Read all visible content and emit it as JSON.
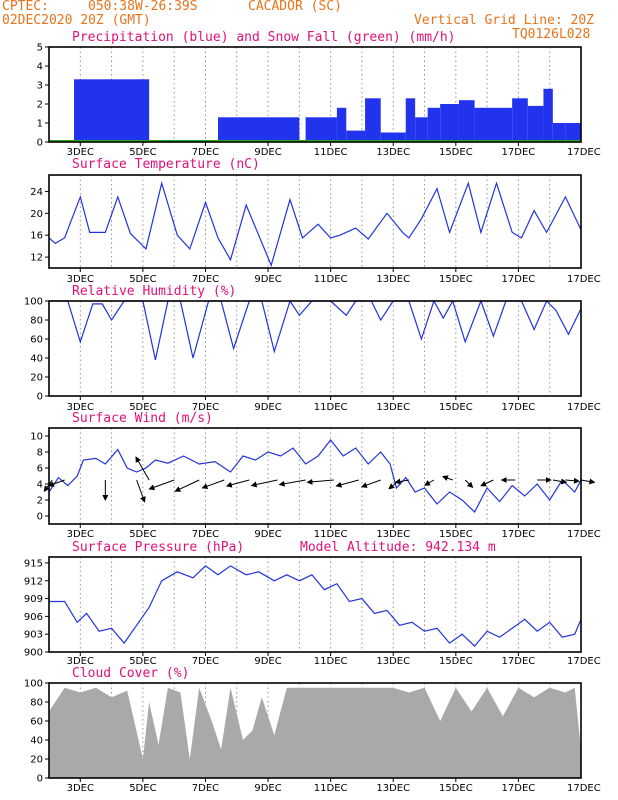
{
  "header": {
    "source": "CPTEC:",
    "coords": "050:38W-26:39S",
    "location": "CACADOR (SC)",
    "date": "02DEC2020 20Z (GMT)",
    "grid_note": "Vertical Grid Line: 20Z",
    "code": "TQ0126L028"
  },
  "colors": {
    "header": "#e8731a",
    "title": "#e0107a",
    "line": "#2233dd",
    "precip": "#2233ee",
    "snow": "#22aa22",
    "cloud": "#a9a9a9",
    "wind_arrow": "#000000"
  },
  "x_ticks": [
    "3DEC",
    "5DEC",
    "7DEC",
    "9DEC",
    "11DEC",
    "13DEC",
    "15DEC",
    "17DEC"
  ],
  "chart_data": [
    {
      "id": "precip",
      "type": "bar",
      "title": "Precipitation (blue) and Snow Fall (green) (mm/h)",
      "ylim": [
        0,
        5
      ],
      "yticks": [
        0,
        1,
        2,
        3,
        4,
        5
      ],
      "x_range": [
        "02DEC2020 20Z",
        "17DEC2020 20Z"
      ],
      "series": [
        {
          "name": "Precipitation",
          "values_by_day": [
            [
              0.8,
              3.3
            ],
            [
              3.2,
              0.0
            ],
            [
              3.4,
              0.0
            ],
            [
              5.0,
              0.0
            ],
            [
              5.4,
              1.3
            ],
            [
              8.0,
              0.0
            ],
            [
              8.2,
              1.3
            ],
            [
              9.2,
              1.8
            ],
            [
              9.5,
              0.6
            ],
            [
              10.1,
              2.3
            ],
            [
              10.6,
              0.5
            ],
            [
              11.4,
              2.3
            ],
            [
              11.7,
              1.3
            ],
            [
              12.1,
              1.8
            ],
            [
              12.5,
              2.0
            ],
            [
              13.1,
              2.2
            ],
            [
              13.6,
              1.8
            ],
            [
              14.3,
              1.8
            ],
            [
              14.8,
              2.3
            ],
            [
              15.3,
              1.9
            ],
            [
              15.8,
              2.8
            ],
            [
              16.1,
              1.0
            ],
            [
              16.5,
              1.0
            ],
            [
              17.0,
              0.0
            ]
          ]
        },
        {
          "name": "Snow Fall",
          "values_by_day": [
            [
              0.0,
              0.05
            ],
            [
              17.0,
              0.05
            ]
          ]
        }
      ]
    },
    {
      "id": "temp",
      "type": "line",
      "title": "Surface Temperature (nC)",
      "ylim": [
        10,
        27
      ],
      "yticks": [
        12,
        16,
        20,
        24
      ],
      "points": [
        [
          0.0,
          15.5
        ],
        [
          0.2,
          14.5
        ],
        [
          0.5,
          15.5
        ],
        [
          1.0,
          23.0
        ],
        [
          1.3,
          16.5
        ],
        [
          1.8,
          16.5
        ],
        [
          2.2,
          23.0
        ],
        [
          2.6,
          16.3
        ],
        [
          3.1,
          13.5
        ],
        [
          3.6,
          25.5
        ],
        [
          4.1,
          16.0
        ],
        [
          4.5,
          13.5
        ],
        [
          5.0,
          22.0
        ],
        [
          5.4,
          15.5
        ],
        [
          5.8,
          11.5
        ],
        [
          6.3,
          21.5
        ],
        [
          6.7,
          16.0
        ],
        [
          7.1,
          10.5
        ],
        [
          7.7,
          22.5
        ],
        [
          8.1,
          15.5
        ],
        [
          8.3,
          16.5
        ],
        [
          8.6,
          18.0
        ],
        [
          9.0,
          15.5
        ],
        [
          9.3,
          16.0
        ],
        [
          9.8,
          17.3
        ],
        [
          10.2,
          15.3
        ],
        [
          10.8,
          20.0
        ],
        [
          11.3,
          16.5
        ],
        [
          11.5,
          15.5
        ],
        [
          11.9,
          19.0
        ],
        [
          12.4,
          24.5
        ],
        [
          12.8,
          16.5
        ],
        [
          13.4,
          25.5
        ],
        [
          13.8,
          16.5
        ],
        [
          14.3,
          25.5
        ],
        [
          14.8,
          16.5
        ],
        [
          15.1,
          15.5
        ],
        [
          15.5,
          20.5
        ],
        [
          15.9,
          16.5
        ],
        [
          16.5,
          23.0
        ],
        [
          17.0,
          17.0
        ]
      ]
    },
    {
      "id": "rh",
      "type": "line",
      "title": "Relative Humidity (%)",
      "ylim": [
        0,
        100
      ],
      "yticks": [
        0,
        20,
        40,
        60,
        80,
        100
      ],
      "points": [
        [
          0.0,
          100
        ],
        [
          0.6,
          100
        ],
        [
          1.0,
          57
        ],
        [
          1.4,
          97
        ],
        [
          1.7,
          97
        ],
        [
          2.0,
          80
        ],
        [
          2.4,
          100
        ],
        [
          3.0,
          100
        ],
        [
          3.4,
          38
        ],
        [
          3.8,
          100
        ],
        [
          4.2,
          100
        ],
        [
          4.6,
          40
        ],
        [
          5.1,
          100
        ],
        [
          5.5,
          100
        ],
        [
          5.9,
          50
        ],
        [
          6.4,
          100
        ],
        [
          6.8,
          100
        ],
        [
          7.2,
          47
        ],
        [
          7.7,
          100
        ],
        [
          8.0,
          85
        ],
        [
          8.4,
          100
        ],
        [
          9.0,
          100
        ],
        [
          9.5,
          85
        ],
        [
          9.8,
          100
        ],
        [
          10.3,
          100
        ],
        [
          10.6,
          80
        ],
        [
          11.0,
          100
        ],
        [
          11.5,
          100
        ],
        [
          11.9,
          60
        ],
        [
          12.3,
          100
        ],
        [
          12.6,
          82
        ],
        [
          12.9,
          100
        ],
        [
          13.3,
          57
        ],
        [
          13.8,
          100
        ],
        [
          14.2,
          63
        ],
        [
          14.6,
          100
        ],
        [
          15.1,
          100
        ],
        [
          15.5,
          70
        ],
        [
          15.9,
          100
        ],
        [
          16.2,
          90
        ],
        [
          16.6,
          65
        ],
        [
          17.0,
          92
        ]
      ]
    },
    {
      "id": "wind",
      "type": "line",
      "title": "Surface Wind (m/s)",
      "ylim": [
        -1,
        11
      ],
      "yticks": [
        0,
        2,
        4,
        6,
        8,
        10
      ],
      "points": [
        [
          0.0,
          3.0
        ],
        [
          0.3,
          4.8
        ],
        [
          0.6,
          3.8
        ],
        [
          0.9,
          5.0
        ],
        [
          1.1,
          7.0
        ],
        [
          1.5,
          7.2
        ],
        [
          1.8,
          6.5
        ],
        [
          2.2,
          8.3
        ],
        [
          2.5,
          6.0
        ],
        [
          2.8,
          5.5
        ],
        [
          3.1,
          6.0
        ],
        [
          3.4,
          7.0
        ],
        [
          3.8,
          6.6
        ],
        [
          4.3,
          7.5
        ],
        [
          4.8,
          6.5
        ],
        [
          5.3,
          6.8
        ],
        [
          5.8,
          5.5
        ],
        [
          6.2,
          7.5
        ],
        [
          6.6,
          7.0
        ],
        [
          7.0,
          8.0
        ],
        [
          7.4,
          7.5
        ],
        [
          7.8,
          8.5
        ],
        [
          8.2,
          6.5
        ],
        [
          8.6,
          7.5
        ],
        [
          9.0,
          9.5
        ],
        [
          9.4,
          7.5
        ],
        [
          9.8,
          8.5
        ],
        [
          10.2,
          6.5
        ],
        [
          10.6,
          8.0
        ],
        [
          10.9,
          6.5
        ],
        [
          11.1,
          3.5
        ],
        [
          11.4,
          4.8
        ],
        [
          11.7,
          3.0
        ],
        [
          12.0,
          3.5
        ],
        [
          12.4,
          1.5
        ],
        [
          12.8,
          3.0
        ],
        [
          13.2,
          2.0
        ],
        [
          13.6,
          0.5
        ],
        [
          14.0,
          3.5
        ],
        [
          14.4,
          1.8
        ],
        [
          14.8,
          3.8
        ],
        [
          15.2,
          2.5
        ],
        [
          15.6,
          4.0
        ],
        [
          16.0,
          2.0
        ],
        [
          16.4,
          4.5
        ],
        [
          16.8,
          3.0
        ],
        [
          17.0,
          4.5
        ]
      ],
      "vectors_day_deg_speed": [
        [
          0.1,
          215,
          3
        ],
        [
          0.5,
          250,
          4
        ],
        [
          1.8,
          180,
          5
        ],
        [
          2.8,
          160,
          6
        ],
        [
          3.2,
          330,
          7
        ],
        [
          4.0,
          250,
          7
        ],
        [
          4.8,
          245,
          7
        ],
        [
          5.6,
          250,
          6
        ],
        [
          6.4,
          255,
          6
        ],
        [
          7.3,
          258,
          7
        ],
        [
          8.2,
          260,
          7
        ],
        [
          9.1,
          265,
          7
        ],
        [
          9.9,
          255,
          6
        ],
        [
          10.6,
          250,
          5
        ],
        [
          11.2,
          230,
          3
        ],
        [
          11.5,
          260,
          3
        ],
        [
          12.3,
          240,
          2
        ],
        [
          12.9,
          290,
          2
        ],
        [
          13.3,
          135,
          2
        ],
        [
          14.2,
          245,
          3
        ],
        [
          14.9,
          270,
          3
        ],
        [
          15.6,
          90,
          3
        ],
        [
          16.1,
          100,
          3
        ],
        [
          16.5,
          95,
          3
        ],
        [
          17.0,
          100,
          3
        ]
      ]
    },
    {
      "id": "pressure",
      "type": "line",
      "title": "Surface Pressure (hPa)",
      "annotation": "Model Altitude: 942.134 m",
      "ylim": [
        900,
        916
      ],
      "yticks": [
        900,
        903,
        906,
        909,
        912,
        915
      ],
      "points": [
        [
          0.0,
          908.5
        ],
        [
          0.5,
          908.5
        ],
        [
          0.9,
          905.0
        ],
        [
          1.2,
          906.5
        ],
        [
          1.6,
          903.5
        ],
        [
          2.0,
          904.0
        ],
        [
          2.4,
          901.5
        ],
        [
          2.8,
          904.5
        ],
        [
          3.2,
          907.5
        ],
        [
          3.6,
          912.0
        ],
        [
          4.1,
          913.5
        ],
        [
          4.6,
          912.5
        ],
        [
          5.0,
          914.5
        ],
        [
          5.4,
          913.0
        ],
        [
          5.8,
          914.5
        ],
        [
          6.3,
          913.0
        ],
        [
          6.7,
          913.5
        ],
        [
          7.2,
          912.0
        ],
        [
          7.6,
          913.0
        ],
        [
          8.0,
          912.0
        ],
        [
          8.4,
          913.0
        ],
        [
          8.8,
          910.5
        ],
        [
          9.2,
          911.5
        ],
        [
          9.6,
          908.5
        ],
        [
          10.0,
          909.0
        ],
        [
          10.4,
          906.5
        ],
        [
          10.8,
          907.0
        ],
        [
          11.2,
          904.5
        ],
        [
          11.6,
          905.0
        ],
        [
          12.0,
          903.5
        ],
        [
          12.4,
          904.0
        ],
        [
          12.8,
          901.5
        ],
        [
          13.2,
          903.0
        ],
        [
          13.6,
          901.0
        ],
        [
          14.0,
          903.5
        ],
        [
          14.4,
          902.5
        ],
        [
          14.8,
          904.0
        ],
        [
          15.2,
          905.5
        ],
        [
          15.6,
          903.5
        ],
        [
          16.0,
          905.0
        ],
        [
          16.4,
          902.5
        ],
        [
          16.8,
          903.0
        ],
        [
          17.0,
          905.5
        ]
      ]
    },
    {
      "id": "cloud",
      "type": "area",
      "title": "Cloud Cover (%)",
      "ylim": [
        0,
        100
      ],
      "yticks": [
        0,
        20,
        40,
        60,
        80,
        100
      ],
      "points": [
        [
          0.0,
          70
        ],
        [
          0.5,
          95
        ],
        [
          1.0,
          90
        ],
        [
          1.5,
          95
        ],
        [
          2.0,
          85
        ],
        [
          2.5,
          92
        ],
        [
          3.0,
          20
        ],
        [
          3.2,
          80
        ],
        [
          3.5,
          35
        ],
        [
          3.8,
          95
        ],
        [
          4.2,
          90
        ],
        [
          4.5,
          20
        ],
        [
          4.8,
          95
        ],
        [
          5.2,
          60
        ],
        [
          5.5,
          30
        ],
        [
          5.8,
          95
        ],
        [
          6.2,
          40
        ],
        [
          6.5,
          50
        ],
        [
          6.8,
          85
        ],
        [
          7.2,
          45
        ],
        [
          7.6,
          95
        ],
        [
          8.0,
          95
        ],
        [
          9.0,
          95
        ],
        [
          10.0,
          95
        ],
        [
          11.0,
          95
        ],
        [
          11.5,
          90
        ],
        [
          12.0,
          95
        ],
        [
          12.5,
          60
        ],
        [
          13.0,
          95
        ],
        [
          13.5,
          70
        ],
        [
          14.0,
          95
        ],
        [
          14.5,
          65
        ],
        [
          15.0,
          95
        ],
        [
          15.5,
          85
        ],
        [
          16.0,
          95
        ],
        [
          16.5,
          90
        ],
        [
          16.8,
          95
        ],
        [
          17.0,
          30
        ]
      ]
    }
  ]
}
